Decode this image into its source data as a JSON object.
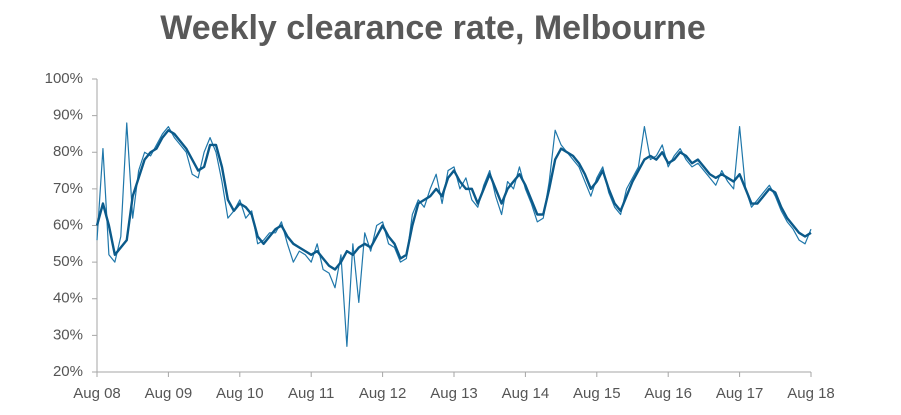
{
  "chart_data": {
    "type": "line",
    "title": "Weekly clearance rate, Melbourne",
    "x": [
      "Aug 08",
      "Sep 08",
      "Oct 08",
      "Nov 08",
      "Dec 08",
      "Jan 09",
      "Feb 09",
      "Mar 09",
      "Apr 09",
      "May 09",
      "Jun 09",
      "Jul 09",
      "Aug 09",
      "Sep 09",
      "Oct 09",
      "Nov 09",
      "Dec 09",
      "Jan 10",
      "Feb 10",
      "Mar 10",
      "Apr 10",
      "May 10",
      "Jun 10",
      "Jul 10",
      "Aug 10",
      "Sep 10",
      "Oct 10",
      "Nov 10",
      "Dec 10",
      "Jan 11",
      "Feb 11",
      "Mar 11",
      "Apr 11",
      "May 11",
      "Jun 11",
      "Jul 11",
      "Aug 11",
      "Sep 11",
      "Oct 11",
      "Nov 11",
      "Dec 11",
      "Jan 12",
      "Feb 12",
      "Mar 12",
      "Apr 12",
      "May 12",
      "Jun 12",
      "Jul 12",
      "Aug 12",
      "Sep 12",
      "Oct 12",
      "Nov 12",
      "Dec 12",
      "Jan 13",
      "Feb 13",
      "Mar 13",
      "Apr 13",
      "May 13",
      "Jun 13",
      "Jul 13",
      "Aug 13",
      "Sep 13",
      "Oct 13",
      "Nov 13",
      "Dec 13",
      "Jan 14",
      "Feb 14",
      "Mar 14",
      "Apr 14",
      "May 14",
      "Jun 14",
      "Jul 14",
      "Aug 14",
      "Sep 14",
      "Oct 14",
      "Nov 14",
      "Dec 14",
      "Jan 15",
      "Feb 15",
      "Mar 15",
      "Apr 15",
      "May 15",
      "Jun 15",
      "Jul 15",
      "Aug 15",
      "Sep 15",
      "Oct 15",
      "Nov 15",
      "Dec 15",
      "Jan 16",
      "Feb 16",
      "Mar 16",
      "Apr 16",
      "May 16",
      "Jun 16",
      "Jul 16",
      "Aug 16",
      "Sep 16",
      "Oct 16",
      "Nov 16",
      "Dec 16",
      "Jan 17",
      "Feb 17",
      "Mar 17",
      "Apr 17",
      "May 17",
      "Jun 17",
      "Jul 17",
      "Aug 17",
      "Sep 17",
      "Oct 17",
      "Nov 17",
      "Dec 17",
      "Jan 18",
      "Feb 18",
      "Mar 18",
      "Apr 18",
      "May 18",
      "Jun 18",
      "Jul 18",
      "Aug 18"
    ],
    "series": [
      {
        "color": "#1f77aa",
        "width": 1.2,
        "values": [
          56,
          81,
          52,
          50,
          57,
          88,
          62,
          75,
          80,
          79,
          82,
          85,
          87,
          84,
          82,
          80,
          74,
          73,
          80,
          84,
          80,
          72,
          62,
          64,
          67,
          62,
          64,
          55,
          56,
          58,
          58,
          61,
          55,
          50,
          53,
          52,
          50,
          55,
          48,
          47,
          43,
          52,
          27,
          55,
          39,
          58,
          53,
          60,
          61,
          55,
          54,
          50,
          51,
          63,
          67,
          65,
          70,
          74,
          66,
          75,
          76,
          70,
          73,
          67,
          65,
          71,
          75,
          68,
          63,
          72,
          70,
          76,
          70,
          66,
          61,
          62,
          72,
          86,
          82,
          80,
          78,
          76,
          72,
          68,
          73,
          76,
          69,
          65,
          63,
          70,
          73,
          76,
          87,
          78,
          79,
          82,
          76,
          79,
          81,
          78,
          76,
          77,
          75,
          73,
          71,
          75,
          72,
          70,
          87,
          70,
          65,
          67,
          69,
          71,
          68,
          64,
          61,
          59,
          56,
          55,
          59
        ]
      },
      {
        "color": "#0b5a8a",
        "width": 2.4,
        "values": [
          60,
          66,
          60,
          52,
          54,
          56,
          68,
          73,
          78,
          80,
          81,
          84,
          86,
          85,
          83,
          81,
          78,
          75,
          76,
          82,
          82,
          76,
          67,
          64,
          66,
          65,
          63,
          57,
          55,
          57,
          59,
          60,
          57,
          55,
          54,
          53,
          52,
          53,
          51,
          49,
          48,
          50,
          53,
          52,
          54,
          55,
          54,
          57,
          60,
          57,
          55,
          51,
          52,
          60,
          66,
          67,
          68,
          70,
          68,
          73,
          75,
          72,
          70,
          70,
          66,
          70,
          74,
          70,
          66,
          70,
          72,
          74,
          71,
          67,
          63,
          63,
          70,
          78,
          81,
          80,
          79,
          77,
          74,
          70,
          72,
          75,
          70,
          66,
          64,
          68,
          72,
          75,
          78,
          79,
          78,
          80,
          77,
          78,
          80,
          79,
          77,
          78,
          76,
          74,
          73,
          74,
          73,
          72,
          74,
          70,
          66,
          66,
          68,
          70,
          69,
          65,
          62,
          60,
          58,
          57,
          58
        ]
      }
    ],
    "ylim": [
      20,
      100
    ],
    "yticks": [
      {
        "value": 20,
        "label": "20%"
      },
      {
        "value": 30,
        "label": "30%"
      },
      {
        "value": 40,
        "label": "40%"
      },
      {
        "value": 50,
        "label": "50%"
      },
      {
        "value": 60,
        "label": "60%"
      },
      {
        "value": 70,
        "label": "70%"
      },
      {
        "value": 80,
        "label": "80%"
      },
      {
        "value": 90,
        "label": "90%"
      },
      {
        "value": 100,
        "label": "100%"
      }
    ],
    "grid": false
  }
}
